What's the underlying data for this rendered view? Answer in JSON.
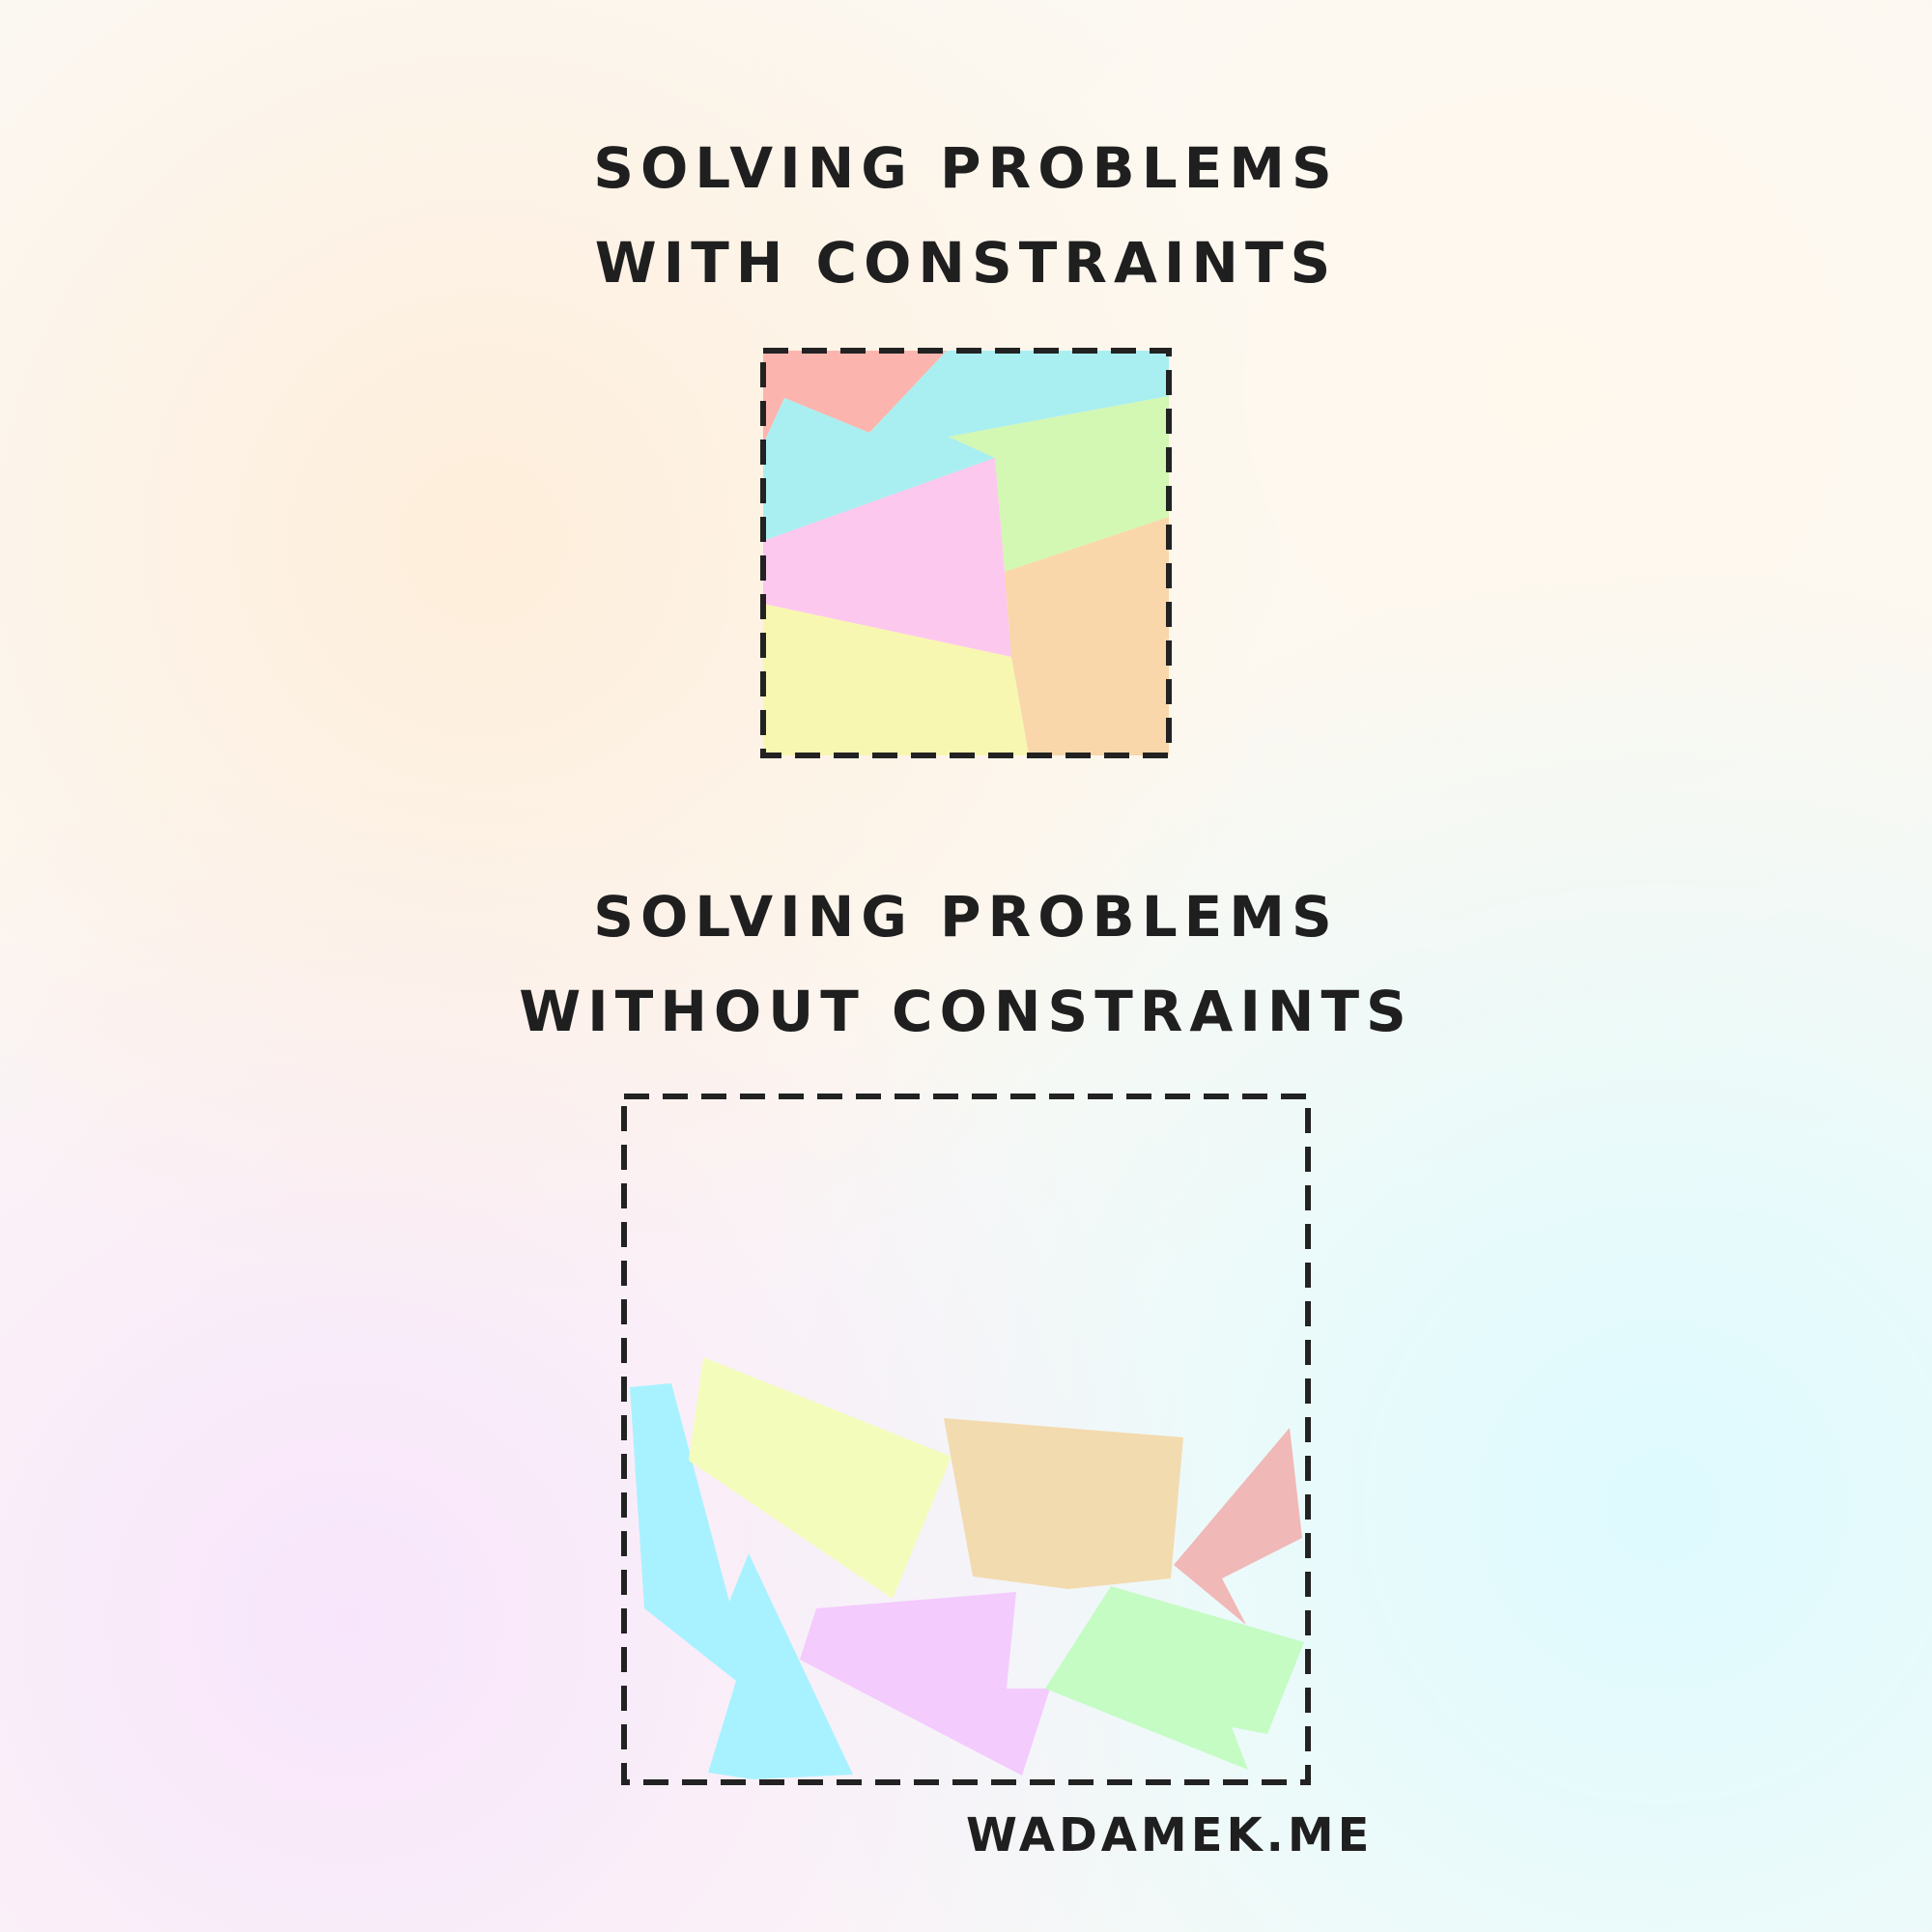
{
  "top_panel": {
    "title_line1": "SOLVING PROBLEMS",
    "title_line2": "WITH CONSTRAINTS",
    "pieces": [
      {
        "name": "red-piece",
        "color": "#fcb5ae"
      },
      {
        "name": "cyan-piece",
        "color": "#a9eff1"
      },
      {
        "name": "green-piece",
        "color": "#d3f8b3"
      },
      {
        "name": "pink-piece",
        "color": "#fdc8ee"
      },
      {
        "name": "orange-piece",
        "color": "#f9d7aa"
      },
      {
        "name": "yellow-piece",
        "color": "#f8f7b1"
      }
    ]
  },
  "bottom_panel": {
    "title_line1": "SOLVING PROBLEMS",
    "title_line2": "WITHOUT CONSTRAINTS",
    "pieces": [
      {
        "name": "cyan-piece",
        "color": "#a8f2ff"
      },
      {
        "name": "yellow-piece",
        "color": "#f4fcbc"
      },
      {
        "name": "orange-piece",
        "color": "#f3dbb0"
      },
      {
        "name": "red-piece",
        "color": "#f0b8b6"
      },
      {
        "name": "violet-piece",
        "color": "#f3cbfd"
      },
      {
        "name": "green-piece",
        "color": "#c4fcc4"
      }
    ]
  },
  "credit": "WADAMEK.ME"
}
